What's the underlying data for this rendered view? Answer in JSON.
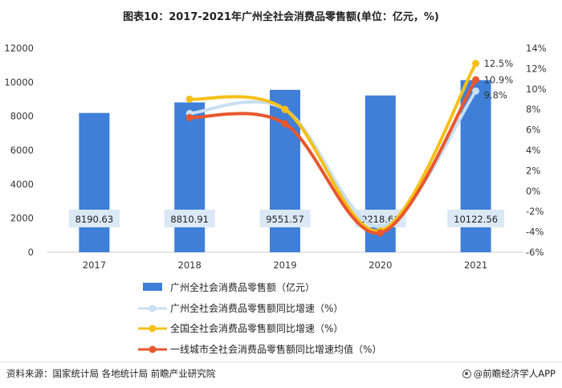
{
  "title": "图表10：2017-2021年广州全社会消费品零售额(单位：亿元，%)",
  "footer": {
    "source": "资料来源：国家统计局 各地统计局 前瞻产业研究院",
    "brand": "@前瞻经济学人APP",
    "brand_icon": "brand-circle-icon"
  },
  "colors": {
    "bar": "#3f7fd8",
    "guangzhou_growth": "#c9dff2",
    "national_growth": "#f5c018",
    "tier1_growth": "#e8572d",
    "label_box": "#dbe8f5"
  },
  "chart_data": {
    "type": "bar",
    "categories": [
      "2017",
      "2018",
      "2019",
      "2020",
      "2021"
    ],
    "bar_series": {
      "name": "广州全社会消费品零售额（亿元）",
      "values": [
        8190.63,
        8810.91,
        9551.57,
        9218.66,
        10122.56
      ],
      "labels": [
        "8190.63",
        "8810.91",
        "9551.57",
        "9218.66",
        "10122.56"
      ]
    },
    "line_series": [
      {
        "name": "广州全社会消费品零售额同比增速（%）",
        "values": [
          null,
          7.6,
          8.0,
          -3.5,
          9.8
        ],
        "end_label": "9.8%"
      },
      {
        "name": "全国全社会消费品零售额同比增速（%）",
        "values": [
          null,
          9.0,
          8.0,
          -3.9,
          12.5
        ],
        "end_label": "12.5%"
      },
      {
        "name": "一线城市全社会消费品零售额同比增速均值（%）",
        "values": [
          null,
          7.2,
          6.6,
          -4.1,
          10.9
        ],
        "end_label": "10.9%"
      }
    ],
    "y_left": {
      "min": 0,
      "max": 12000,
      "ticks": [
        "0",
        "2000",
        "4000",
        "6000",
        "8000",
        "10000",
        "12000"
      ]
    },
    "y_right": {
      "min": -6,
      "max": 14,
      "ticks": [
        "-6%",
        "-4%",
        "-2%",
        "0%",
        "2%",
        "4%",
        "6%",
        "8%",
        "10%",
        "12%",
        "14%"
      ]
    },
    "grid": false,
    "legend_position": "bottom"
  }
}
